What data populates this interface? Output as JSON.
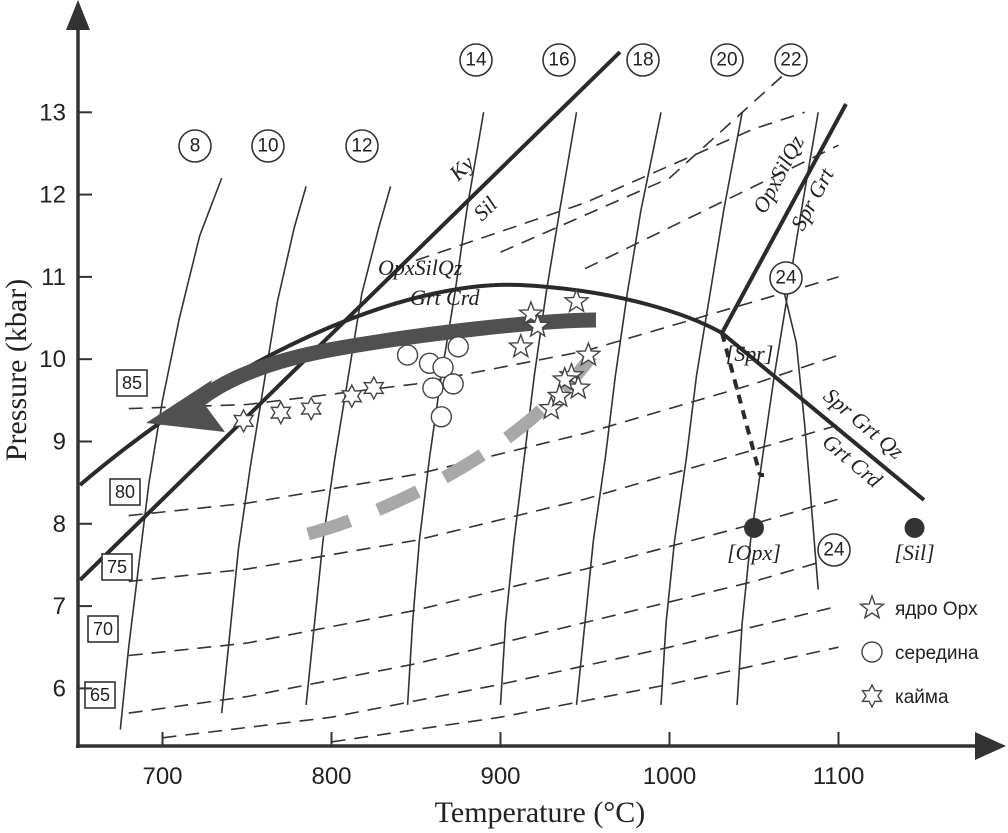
{
  "chart_data": {
    "type": "scatter",
    "title": "",
    "xlabel": "Temperature (°C)",
    "ylabel": "Pressure (kbar)",
    "xlim": [
      650,
      1150
    ],
    "ylim": [
      5.3,
      13.5
    ],
    "x_ticks": [
      700,
      800,
      900,
      1000,
      1100
    ],
    "y_ticks": [
      6,
      7,
      8,
      9,
      10,
      11,
      12,
      13
    ],
    "colors": {
      "axis": "#333333",
      "path_dark": "#505050",
      "path_light": "#a8a8a8",
      "invariant_point": "#333333"
    },
    "reaction_labels": [
      {
        "text": "Ky"
      },
      {
        "text": "Sil"
      },
      {
        "text": "OpxSilQz"
      },
      {
        "text": "Grt Crd"
      },
      {
        "text": "OpxSilQz"
      },
      {
        "text": "Spr Grt"
      },
      {
        "text": "Spr Grt Qz"
      },
      {
        "text": "Grt Crd"
      }
    ],
    "invariant_points": [
      {
        "label": "[Spr]",
        "x": 1025,
        "y": 10.0
      },
      {
        "label": "[Opx]",
        "x": 1050,
        "y": 7.95
      },
      {
        "label": "[Sil]",
        "x": 1145,
        "y": 7.95
      }
    ],
    "solid_isopleths": [
      {
        "label": "8",
        "points": [
          [
            675,
            5.5
          ],
          [
            680,
            6.5
          ],
          [
            686,
            7.5
          ],
          [
            692,
            8.5
          ],
          [
            700,
            9.5
          ],
          [
            710,
            10.5
          ],
          [
            722,
            11.5
          ],
          [
            735,
            12.2
          ]
        ]
      },
      {
        "label": "10",
        "points": [
          [
            735,
            5.7
          ],
          [
            740,
            6.7
          ],
          [
            745,
            7.7
          ],
          [
            752,
            8.7
          ],
          [
            760,
            9.7
          ],
          [
            768,
            10.7
          ],
          [
            778,
            11.6
          ],
          [
            785,
            12.1
          ]
        ]
      },
      {
        "label": "12",
        "points": [
          [
            785,
            5.8
          ],
          [
            790,
            6.8
          ],
          [
            795,
            7.8
          ],
          [
            802,
            8.8
          ],
          [
            810,
            9.8
          ],
          [
            818,
            10.8
          ],
          [
            828,
            11.6
          ],
          [
            835,
            12.1
          ]
        ]
      },
      {
        "label": "14",
        "points": [
          [
            845,
            5.8
          ],
          [
            848,
            6.8
          ],
          [
            852,
            7.8
          ],
          [
            858,
            8.8
          ],
          [
            865,
            9.8
          ],
          [
            873,
            10.8
          ],
          [
            880,
            11.8
          ],
          [
            890,
            13.0
          ]
        ]
      },
      {
        "label": "16",
        "points": [
          [
            900,
            5.8
          ],
          [
            903,
            6.8
          ],
          [
            908,
            7.8
          ],
          [
            914,
            8.8
          ],
          [
            920,
            9.8
          ],
          [
            927,
            10.8
          ],
          [
            935,
            11.8
          ],
          [
            945,
            13.0
          ]
        ]
      },
      {
        "label": "18",
        "points": [
          [
            945,
            5.8
          ],
          [
            950,
            6.8
          ],
          [
            955,
            7.8
          ],
          [
            962,
            8.8
          ],
          [
            968,
            9.8
          ],
          [
            975,
            10.8
          ],
          [
            983,
            11.8
          ],
          [
            995,
            13.0
          ]
        ]
      },
      {
        "label": "20",
        "points": [
          [
            995,
            5.8
          ],
          [
            998,
            6.8
          ],
          [
            1003,
            7.8
          ],
          [
            1010,
            8.8
          ],
          [
            1016,
            9.8
          ],
          [
            1024,
            10.8
          ],
          [
            1032,
            11.8
          ],
          [
            1043,
            13.0
          ]
        ]
      },
      {
        "label": "22",
        "points": [
          [
            1040,
            5.8
          ],
          [
            1043,
            6.8
          ],
          [
            1048,
            7.8
          ],
          [
            1055,
            8.8
          ],
          [
            1062,
            9.8
          ],
          [
            1070,
            10.8
          ],
          [
            1078,
            11.8
          ],
          [
            1088,
            13.0
          ]
        ]
      },
      {
        "label": "24",
        "points": [
          [
            1088,
            7.2
          ],
          [
            1084,
            8.2
          ],
          [
            1080,
            9.2
          ],
          [
            1075,
            10.2
          ],
          [
            1068,
            10.8
          ]
        ]
      }
    ],
    "dashed_isolines": [
      {
        "label": "85",
        "points": [
          [
            680,
            9.4
          ],
          [
            750,
            9.45
          ],
          [
            850,
            9.7
          ],
          [
            950,
            10.1
          ],
          [
            1050,
            10.7
          ],
          [
            1100,
            11.0
          ]
        ]
      },
      {
        "label": "80",
        "points": [
          [
            680,
            8.1
          ],
          [
            750,
            8.25
          ],
          [
            850,
            8.6
          ],
          [
            950,
            9.1
          ],
          [
            1050,
            9.7
          ],
          [
            1100,
            10.05
          ]
        ]
      },
      {
        "label": "75",
        "points": [
          [
            680,
            7.3
          ],
          [
            750,
            7.45
          ],
          [
            850,
            7.8
          ],
          [
            950,
            8.3
          ],
          [
            1050,
            8.9
          ],
          [
            1100,
            9.2
          ]
        ]
      },
      {
        "label": "70",
        "points": [
          [
            680,
            6.4
          ],
          [
            750,
            6.55
          ],
          [
            850,
            6.95
          ],
          [
            950,
            7.45
          ],
          [
            1050,
            8.0
          ],
          [
            1100,
            8.3
          ]
        ]
      },
      {
        "label": "65",
        "points": [
          [
            680,
            5.7
          ],
          [
            750,
            5.9
          ],
          [
            850,
            6.3
          ],
          [
            950,
            6.8
          ],
          [
            1050,
            7.3
          ],
          [
            1100,
            7.6
          ]
        ]
      },
      {
        "label": "",
        "points": [
          [
            700,
            5.4
          ],
          [
            800,
            5.65
          ],
          [
            900,
            6.05
          ],
          [
            1000,
            6.5
          ],
          [
            1100,
            7.0
          ]
        ]
      },
      {
        "label": "",
        "points": [
          [
            800,
            5.35
          ],
          [
            900,
            5.65
          ],
          [
            1000,
            6.05
          ],
          [
            1100,
            6.5
          ]
        ]
      },
      {
        "label": "",
        "points": [
          [
            850,
            11.2
          ],
          [
            950,
            11.9
          ],
          [
            1050,
            12.8
          ],
          [
            1080,
            13.0
          ]
        ]
      },
      {
        "label": "",
        "points": [
          [
            900,
            11.3
          ],
          [
            1000,
            12.2
          ],
          [
            1070,
            13.5
          ]
        ]
      },
      {
        "label": "",
        "points": [
          [
            950,
            11.1
          ],
          [
            1050,
            12.1
          ],
          [
            1100,
            12.6
          ]
        ]
      }
    ],
    "circled_numbers": [
      "8",
      "10",
      "12",
      "14",
      "16",
      "18",
      "20",
      "22",
      "24",
      "24"
    ],
    "boxed_numbers": [
      "85",
      "80",
      "75",
      "70",
      "65"
    ],
    "series": [
      {
        "name": "ядро Opx",
        "marker": "star5",
        "points": [
          [
            918,
            10.55
          ],
          [
            922,
            10.4
          ],
          [
            912,
            10.15
          ],
          [
            945,
            10.7
          ],
          [
            942,
            9.8
          ],
          [
            946,
            9.65
          ],
          [
            938,
            9.75
          ],
          [
            930,
            9.4
          ],
          [
            952,
            10.05
          ],
          [
            935,
            9.55
          ]
        ]
      },
      {
        "name": "середина",
        "marker": "circle",
        "points": [
          [
            845,
            10.05
          ],
          [
            858,
            9.95
          ],
          [
            866,
            9.9
          ],
          [
            875,
            10.15
          ],
          [
            860,
            9.65
          ],
          [
            872,
            9.7
          ],
          [
            865,
            9.3
          ]
        ]
      },
      {
        "name": "кайма",
        "marker": "star6",
        "points": [
          [
            748,
            9.25
          ],
          [
            770,
            9.35
          ],
          [
            788,
            9.4
          ],
          [
            812,
            9.55
          ],
          [
            825,
            9.65
          ]
        ]
      }
    ],
    "legend": {
      "position": "bottom-right",
      "entries": [
        "ядро Opx",
        "середина",
        "кайма"
      ]
    }
  }
}
